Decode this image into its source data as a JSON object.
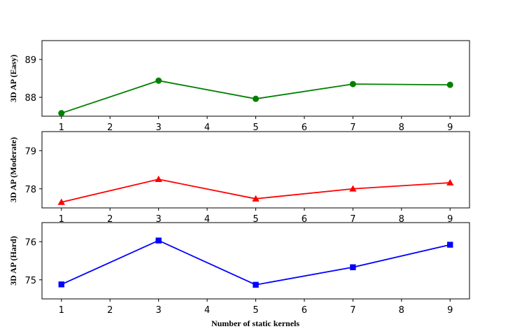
{
  "chart_data": [
    {
      "type": "line",
      "ylabel": "3D AP (Easy)",
      "x": [
        1,
        3,
        5,
        7,
        9
      ],
      "series": [
        {
          "values": [
            87.58,
            88.44,
            87.96,
            88.35,
            88.33
          ],
          "color": "#008000",
          "marker": "circle"
        }
      ],
      "xlim": [
        0.6,
        9.4
      ],
      "ylim": [
        87.5,
        89.5
      ],
      "xticks": [
        1,
        2,
        3,
        4,
        5,
        6,
        7,
        8,
        9
      ],
      "yticks": [
        88,
        89
      ]
    },
    {
      "type": "line",
      "ylabel": "3D AP (Moderate)",
      "x": [
        1,
        3,
        5,
        7,
        9
      ],
      "series": [
        {
          "values": [
            77.65,
            78.25,
            77.74,
            78.0,
            78.16
          ],
          "color": "#ff0000",
          "marker": "triangle"
        }
      ],
      "xlim": [
        0.6,
        9.4
      ],
      "ylim": [
        77.5,
        79.5
      ],
      "xticks": [
        1,
        2,
        3,
        4,
        5,
        6,
        7,
        8,
        9
      ],
      "yticks": [
        78,
        79
      ]
    },
    {
      "type": "line",
      "ylabel": "3D AP (Hard)",
      "xlabel": "Number of static kernels",
      "x": [
        1,
        3,
        5,
        7,
        9
      ],
      "series": [
        {
          "values": [
            74.88,
            76.03,
            74.87,
            75.33,
            75.92
          ],
          "color": "#0000ff",
          "marker": "square"
        }
      ],
      "xlim": [
        0.6,
        9.4
      ],
      "ylim": [
        74.5,
        76.5
      ],
      "xticks": [
        1,
        2,
        3,
        4,
        5,
        6,
        7,
        8,
        9
      ],
      "yticks": [
        75,
        76
      ]
    }
  ]
}
